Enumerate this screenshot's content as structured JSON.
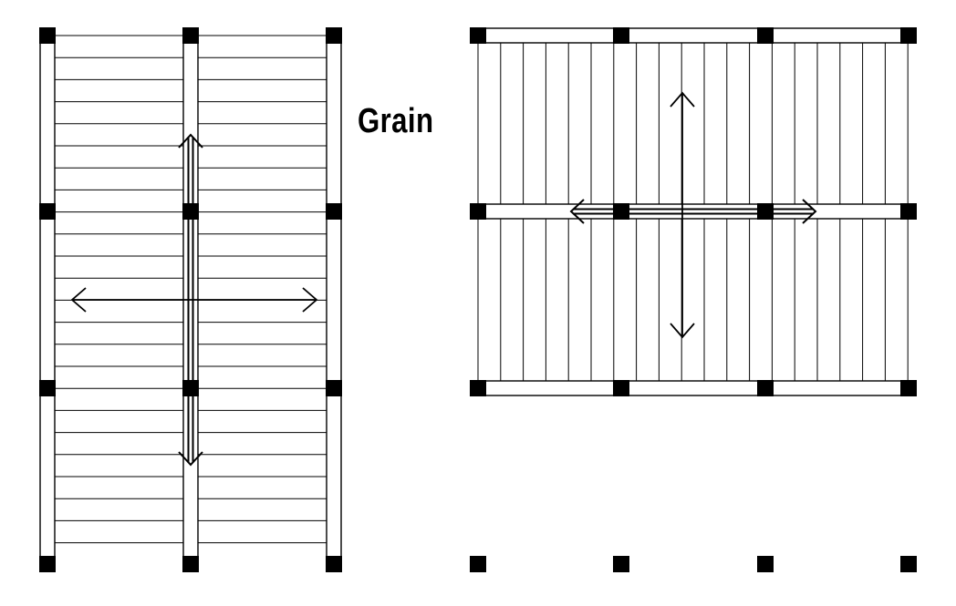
{
  "label": {
    "text": "Grain"
  },
  "colors": {
    "ink": "#000000",
    "paper": "#ffffff"
  },
  "layouts": [
    {
      "name": "layout-left",
      "board_direction": "horizontal",
      "bays_across": 2,
      "bays_down": 3,
      "arrow_heads": "double-line"
    },
    {
      "name": "layout-right",
      "board_direction": "vertical",
      "bays_across": 3,
      "bays_down": 2,
      "extra_post_row": true,
      "arrow_heads": "double-line"
    }
  ]
}
